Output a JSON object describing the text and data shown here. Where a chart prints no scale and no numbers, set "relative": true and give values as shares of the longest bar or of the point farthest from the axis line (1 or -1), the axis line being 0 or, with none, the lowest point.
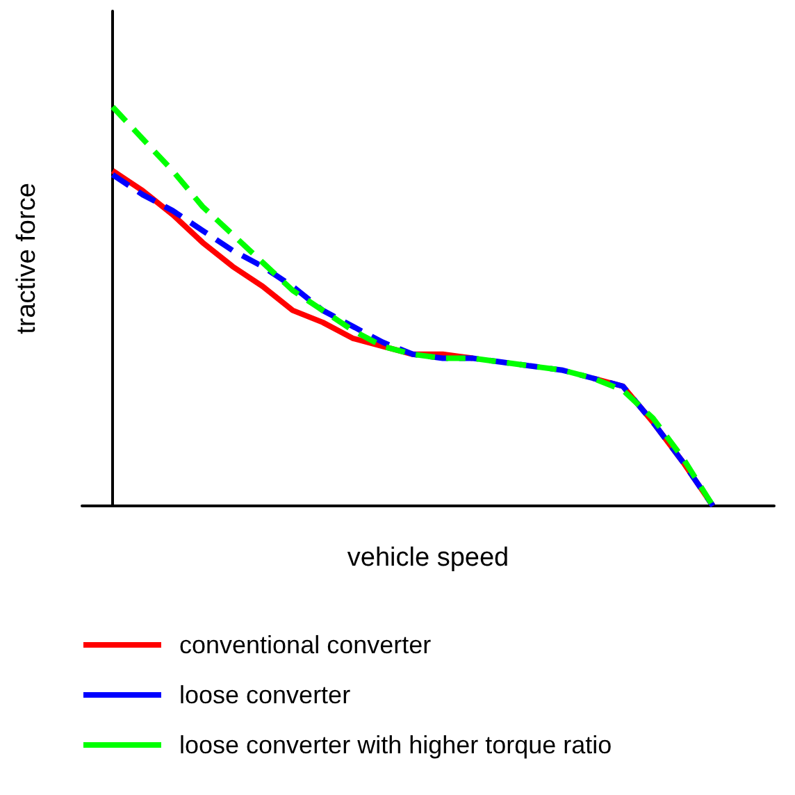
{
  "chart_data": {
    "type": "line",
    "relative": true,
    "xlabel": "vehicle speed",
    "ylabel": "tractive force",
    "legend": "bottom",
    "grid": false,
    "marker": "none",
    "categories": [
      null,
      null,
      null,
      null,
      null,
      null,
      null,
      null,
      null,
      null,
      null,
      null,
      null,
      null,
      null,
      null,
      null,
      null,
      null,
      null,
      null
    ],
    "series": [
      {
        "name": "conventional converter",
        "color": "#ff0000",
        "line_style": "solid",
        "values": [
          0.84,
          0.79,
          0.73,
          0.66,
          0.6,
          0.55,
          0.49,
          0.46,
          0.42,
          0.4,
          0.38,
          0.38,
          0.37,
          null,
          null,
          null,
          0.32,
          0.3,
          0.21,
          0.11,
          0
        ]
      },
      {
        "name": "loose converter",
        "color": "#0000ff",
        "line_style": "dashed",
        "values": [
          0.83,
          0.78,
          0.74,
          0.69,
          0.64,
          0.6,
          0.55,
          0.49,
          0.45,
          0.41,
          0.38,
          0.37,
          0.37,
          0.36,
          0.35,
          0.34,
          0.32,
          0.3,
          0.21,
          0.11,
          0
        ]
      },
      {
        "name": "loose converter with higher torque ratio",
        "color": "#00ff00",
        "line_style": "dashed",
        "values": [
          1,
          0.92,
          0.84,
          0.75,
          0.68,
          0.61,
          0.54,
          0.49,
          0.44,
          0.4,
          0.38,
          0.37,
          0.37,
          0.36,
          0.35,
          0.34,
          0.32,
          0.29,
          0.22,
          0.12,
          0
        ]
      }
    ]
  }
}
